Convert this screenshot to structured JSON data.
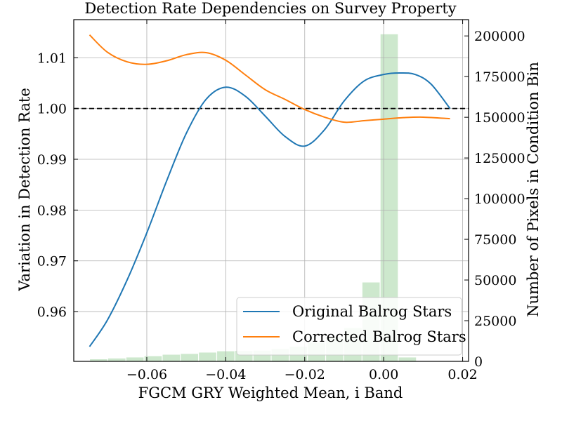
{
  "chart_data": {
    "type": "line",
    "title": "Detection Rate Dependencies on Survey Property",
    "xlabel": "FGCM GRY Weighted Mean, i Band",
    "ylabel": "Variation in Detection Rate",
    "y2label": "Number of Pixels in Condition Bin",
    "xlim": [
      -0.0785,
      0.0215
    ],
    "ylim": [
      0.9502,
      1.0175
    ],
    "y2lim": [
      0,
      210000
    ],
    "grid": true,
    "legend_position": "lower-right",
    "x_ticks": [
      {
        "value": -0.06,
        "label": "−0.06"
      },
      {
        "value": -0.04,
        "label": "−0.04"
      },
      {
        "value": -0.02,
        "label": "−0.02"
      },
      {
        "value": 0.0,
        "label": "0.00"
      },
      {
        "value": 0.02,
        "label": "0.02"
      }
    ],
    "y_ticks": [
      {
        "value": 0.96,
        "label": "0.96"
      },
      {
        "value": 0.97,
        "label": "0.97"
      },
      {
        "value": 0.98,
        "label": "0.98"
      },
      {
        "value": 0.99,
        "label": "0.99"
      },
      {
        "value": 1.0,
        "label": "1.00"
      },
      {
        "value": 1.01,
        "label": "1.01"
      }
    ],
    "y2_ticks": [
      {
        "value": 0,
        "label": "0"
      },
      {
        "value": 25000,
        "label": "25000"
      },
      {
        "value": 50000,
        "label": "50000"
      },
      {
        "value": 75000,
        "label": "75000"
      },
      {
        "value": 100000,
        "label": "100000"
      },
      {
        "value": 125000,
        "label": "125000"
      },
      {
        "value": 150000,
        "label": "150000"
      },
      {
        "value": 175000,
        "label": "175000"
      },
      {
        "value": 200000,
        "label": "200000"
      }
    ],
    "reference_line": {
      "y": 1.0,
      "style": "dashed",
      "color": "#000000"
    },
    "series": [
      {
        "name": "Original Balrog Stars",
        "color": "#1f77b4",
        "points": [
          [
            -0.0745,
            0.9531
          ],
          [
            -0.07,
            0.9583
          ],
          [
            -0.065,
            0.9662
          ],
          [
            -0.06,
            0.9755
          ],
          [
            -0.055,
            0.9857
          ],
          [
            -0.05,
            0.9951
          ],
          [
            -0.045,
            1.0018
          ],
          [
            -0.04,
            1.0042
          ],
          [
            -0.035,
            1.0024
          ],
          [
            -0.03,
            0.9985
          ],
          [
            -0.025,
            0.9945
          ],
          [
            -0.02,
            0.9926
          ],
          [
            -0.015,
            0.9958
          ],
          [
            -0.01,
            1.0015
          ],
          [
            -0.005,
            1.0054
          ],
          [
            0.0,
            1.0067
          ],
          [
            0.004,
            1.007
          ],
          [
            0.008,
            1.0067
          ],
          [
            0.012,
            1.0048
          ],
          [
            0.0168,
            1.0
          ]
        ]
      },
      {
        "name": "Corrected Balrog Stars",
        "color": "#ff7f0e",
        "points": [
          [
            -0.0745,
            1.0145
          ],
          [
            -0.07,
            1.0111
          ],
          [
            -0.065,
            1.0092
          ],
          [
            -0.06,
            1.0087
          ],
          [
            -0.055,
            1.0094
          ],
          [
            -0.05,
            1.0106
          ],
          [
            -0.045,
            1.011
          ],
          [
            -0.04,
            1.0095
          ],
          [
            -0.035,
            1.0066
          ],
          [
            -0.03,
            1.0037
          ],
          [
            -0.025,
            1.0018
          ],
          [
            -0.02,
            0.9998
          ],
          [
            -0.015,
            0.9983
          ],
          [
            -0.01,
            0.9973
          ],
          [
            -0.005,
            0.9976
          ],
          [
            0.0,
            0.9979
          ],
          [
            0.005,
            0.9982
          ],
          [
            0.01,
            0.9983
          ],
          [
            0.0168,
            0.998
          ]
        ]
      }
    ],
    "histogram": {
      "name": "Number of Pixels in Condition Bin",
      "color": "#2ca02c",
      "opacity": 0.24,
      "bins": [
        {
          "x0": -0.0745,
          "x1": -0.0699,
          "value": 1300
        },
        {
          "x0": -0.0699,
          "x1": -0.0653,
          "value": 1800
        },
        {
          "x0": -0.0653,
          "x1": -0.0607,
          "value": 2400
        },
        {
          "x0": -0.0607,
          "x1": -0.0561,
          "value": 3200
        },
        {
          "x0": -0.0561,
          "x1": -0.0515,
          "value": 4100
        },
        {
          "x0": -0.0515,
          "x1": -0.0469,
          "value": 4600
        },
        {
          "x0": -0.0469,
          "x1": -0.0423,
          "value": 5400
        },
        {
          "x0": -0.0423,
          "x1": -0.0377,
          "value": 6200
        },
        {
          "x0": -0.0377,
          "x1": -0.0331,
          "value": 6400
        },
        {
          "x0": -0.0331,
          "x1": -0.0285,
          "value": 6600
        },
        {
          "x0": -0.0285,
          "x1": -0.0239,
          "value": 7600
        },
        {
          "x0": -0.0239,
          "x1": -0.0193,
          "value": 9000
        },
        {
          "x0": -0.0193,
          "x1": -0.0147,
          "value": 11500
        },
        {
          "x0": -0.0147,
          "x1": -0.0101,
          "value": 15000
        },
        {
          "x0": -0.0101,
          "x1": -0.0055,
          "value": 20500
        },
        {
          "x0": -0.0055,
          "x1": -0.0009,
          "value": 48500
        },
        {
          "x0": -0.0009,
          "x1": 0.0037,
          "value": 201000
        },
        {
          "x0": 0.0037,
          "x1": 0.0083,
          "value": 2400
        }
      ]
    }
  }
}
